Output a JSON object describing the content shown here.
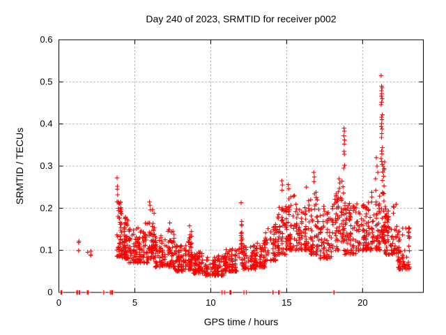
{
  "page": {
    "background": "#ffffff"
  },
  "chart_data": {
    "type": "scatter",
    "title": "Day 240 of 2023, SRMTID for receiver p002",
    "xlabel": "GPS time / hours",
    "ylabel": "SRMTID / TECUs",
    "xlim": [
      0,
      24
    ],
    "ylim": [
      0,
      0.6
    ],
    "xticks": [
      0,
      5,
      10,
      15,
      20
    ],
    "yticks": [
      0,
      0.1,
      0.2,
      0.3,
      0.4,
      0.5,
      0.6
    ],
    "grid": true,
    "legend": false,
    "marker": "plus",
    "marker_color": "#ff0000",
    "grid_color": "#a0a0a0",
    "frame_color": "#000000",
    "seed": 240,
    "band_format": [
      "hour_start",
      "hour_end",
      "point_count",
      "value_min",
      "value_max"
    ],
    "density_bands": [
      [
        1.25,
        1.38,
        4,
        0.095,
        0.125
      ],
      [
        1.88,
        2.1,
        4,
        0.088,
        0.112
      ],
      [
        3.8,
        4.15,
        48,
        0.085,
        0.225
      ],
      [
        4.15,
        4.6,
        60,
        0.08,
        0.19
      ],
      [
        4.6,
        5.2,
        58,
        0.07,
        0.155
      ],
      [
        5.2,
        5.9,
        62,
        0.07,
        0.165
      ],
      [
        5.9,
        6.3,
        46,
        0.08,
        0.2
      ],
      [
        6.3,
        7.1,
        72,
        0.06,
        0.135
      ],
      [
        7.1,
        7.6,
        50,
        0.06,
        0.15
      ],
      [
        7.6,
        8.4,
        72,
        0.05,
        0.115
      ],
      [
        8.4,
        8.8,
        46,
        0.055,
        0.145
      ],
      [
        8.8,
        9.6,
        72,
        0.045,
        0.1
      ],
      [
        9.6,
        10.9,
        112,
        0.04,
        0.088
      ],
      [
        10.9,
        11.9,
        88,
        0.05,
        0.105
      ],
      [
        11.95,
        12.08,
        16,
        0.1,
        0.205
      ],
      [
        12.05,
        12.95,
        72,
        0.055,
        0.115
      ],
      [
        12.95,
        13.6,
        60,
        0.06,
        0.13
      ],
      [
        13.6,
        14.3,
        56,
        0.075,
        0.165
      ],
      [
        14.3,
        15.0,
        62,
        0.09,
        0.205
      ],
      [
        15.0,
        15.7,
        62,
        0.1,
        0.235
      ],
      [
        15.7,
        16.5,
        70,
        0.1,
        0.225
      ],
      [
        16.5,
        17.2,
        62,
        0.09,
        0.245
      ],
      [
        17.2,
        18.0,
        66,
        0.08,
        0.205
      ],
      [
        18.0,
        18.45,
        42,
        0.1,
        0.245
      ],
      [
        18.45,
        18.75,
        26,
        0.12,
        0.285
      ],
      [
        18.75,
        19.6,
        76,
        0.09,
        0.215
      ],
      [
        19.6,
        20.6,
        86,
        0.1,
        0.225
      ],
      [
        20.6,
        21.15,
        56,
        0.1,
        0.25
      ],
      [
        21.15,
        21.45,
        32,
        0.12,
        0.295
      ],
      [
        21.45,
        22.3,
        82,
        0.09,
        0.215
      ],
      [
        22.3,
        23.1,
        72,
        0.055,
        0.155
      ]
    ],
    "spike_points": [
      [
        3.83,
        0.272
      ],
      [
        3.85,
        0.252
      ],
      [
        3.84,
        0.245
      ],
      [
        3.87,
        0.232
      ],
      [
        3.9,
        0.215
      ],
      [
        3.92,
        0.2
      ],
      [
        5.97,
        0.215
      ],
      [
        6.0,
        0.207
      ],
      [
        6.03,
        0.196
      ],
      [
        7.3,
        0.165
      ],
      [
        8.6,
        0.158
      ],
      [
        12.0,
        0.213
      ],
      [
        14.68,
        0.265
      ],
      [
        14.72,
        0.255
      ],
      [
        14.7,
        0.243
      ],
      [
        15.1,
        0.256
      ],
      [
        15.13,
        0.246
      ],
      [
        16.3,
        0.25
      ],
      [
        16.78,
        0.285
      ],
      [
        16.82,
        0.274
      ],
      [
        16.8,
        0.263
      ],
      [
        18.78,
        0.39
      ],
      [
        18.8,
        0.383
      ],
      [
        18.77,
        0.372
      ],
      [
        18.81,
        0.362
      ],
      [
        18.79,
        0.352
      ],
      [
        18.78,
        0.335
      ],
      [
        18.8,
        0.328
      ],
      [
        18.82,
        0.302
      ],
      [
        18.76,
        0.295
      ],
      [
        18.45,
        0.27
      ],
      [
        18.5,
        0.26
      ],
      [
        20.85,
        0.27
      ],
      [
        20.9,
        0.32
      ],
      [
        20.95,
        0.3
      ],
      [
        21.0,
        0.285
      ],
      [
        21.22,
        0.515
      ],
      [
        21.25,
        0.49
      ],
      [
        21.28,
        0.486
      ],
      [
        21.24,
        0.479
      ],
      [
        21.26,
        0.472
      ],
      [
        21.23,
        0.466
      ],
      [
        21.29,
        0.46
      ],
      [
        21.25,
        0.452
      ],
      [
        21.22,
        0.446
      ],
      [
        21.3,
        0.422
      ],
      [
        21.24,
        0.416
      ],
      [
        21.27,
        0.41
      ],
      [
        21.25,
        0.401
      ],
      [
        21.23,
        0.394
      ],
      [
        21.28,
        0.388
      ],
      [
        21.26,
        0.377
      ],
      [
        21.24,
        0.368
      ],
      [
        21.3,
        0.344
      ],
      [
        21.25,
        0.336
      ],
      [
        21.27,
        0.329
      ],
      [
        21.22,
        0.318
      ],
      [
        21.26,
        0.311
      ],
      [
        21.29,
        0.304
      ],
      [
        21.35,
        0.3
      ],
      [
        21.42,
        0.294
      ],
      [
        21.33,
        0.286
      ],
      [
        21.38,
        0.276
      ],
      [
        21.31,
        0.266
      ],
      [
        21.45,
        0.31
      ]
    ],
    "zero_clusters": [
      [
        0.15,
        3
      ],
      [
        1.2,
        4
      ],
      [
        1.35,
        2
      ],
      [
        1.9,
        3
      ],
      [
        2.95,
        1
      ],
      [
        3.35,
        2
      ],
      [
        3.5,
        3
      ],
      [
        10.75,
        1
      ],
      [
        10.9,
        1
      ],
      [
        11.3,
        4
      ],
      [
        12.2,
        1
      ],
      [
        12.32,
        1
      ],
      [
        14.1,
        3
      ],
      [
        14.5,
        3
      ],
      [
        18.15,
        3
      ]
    ]
  }
}
